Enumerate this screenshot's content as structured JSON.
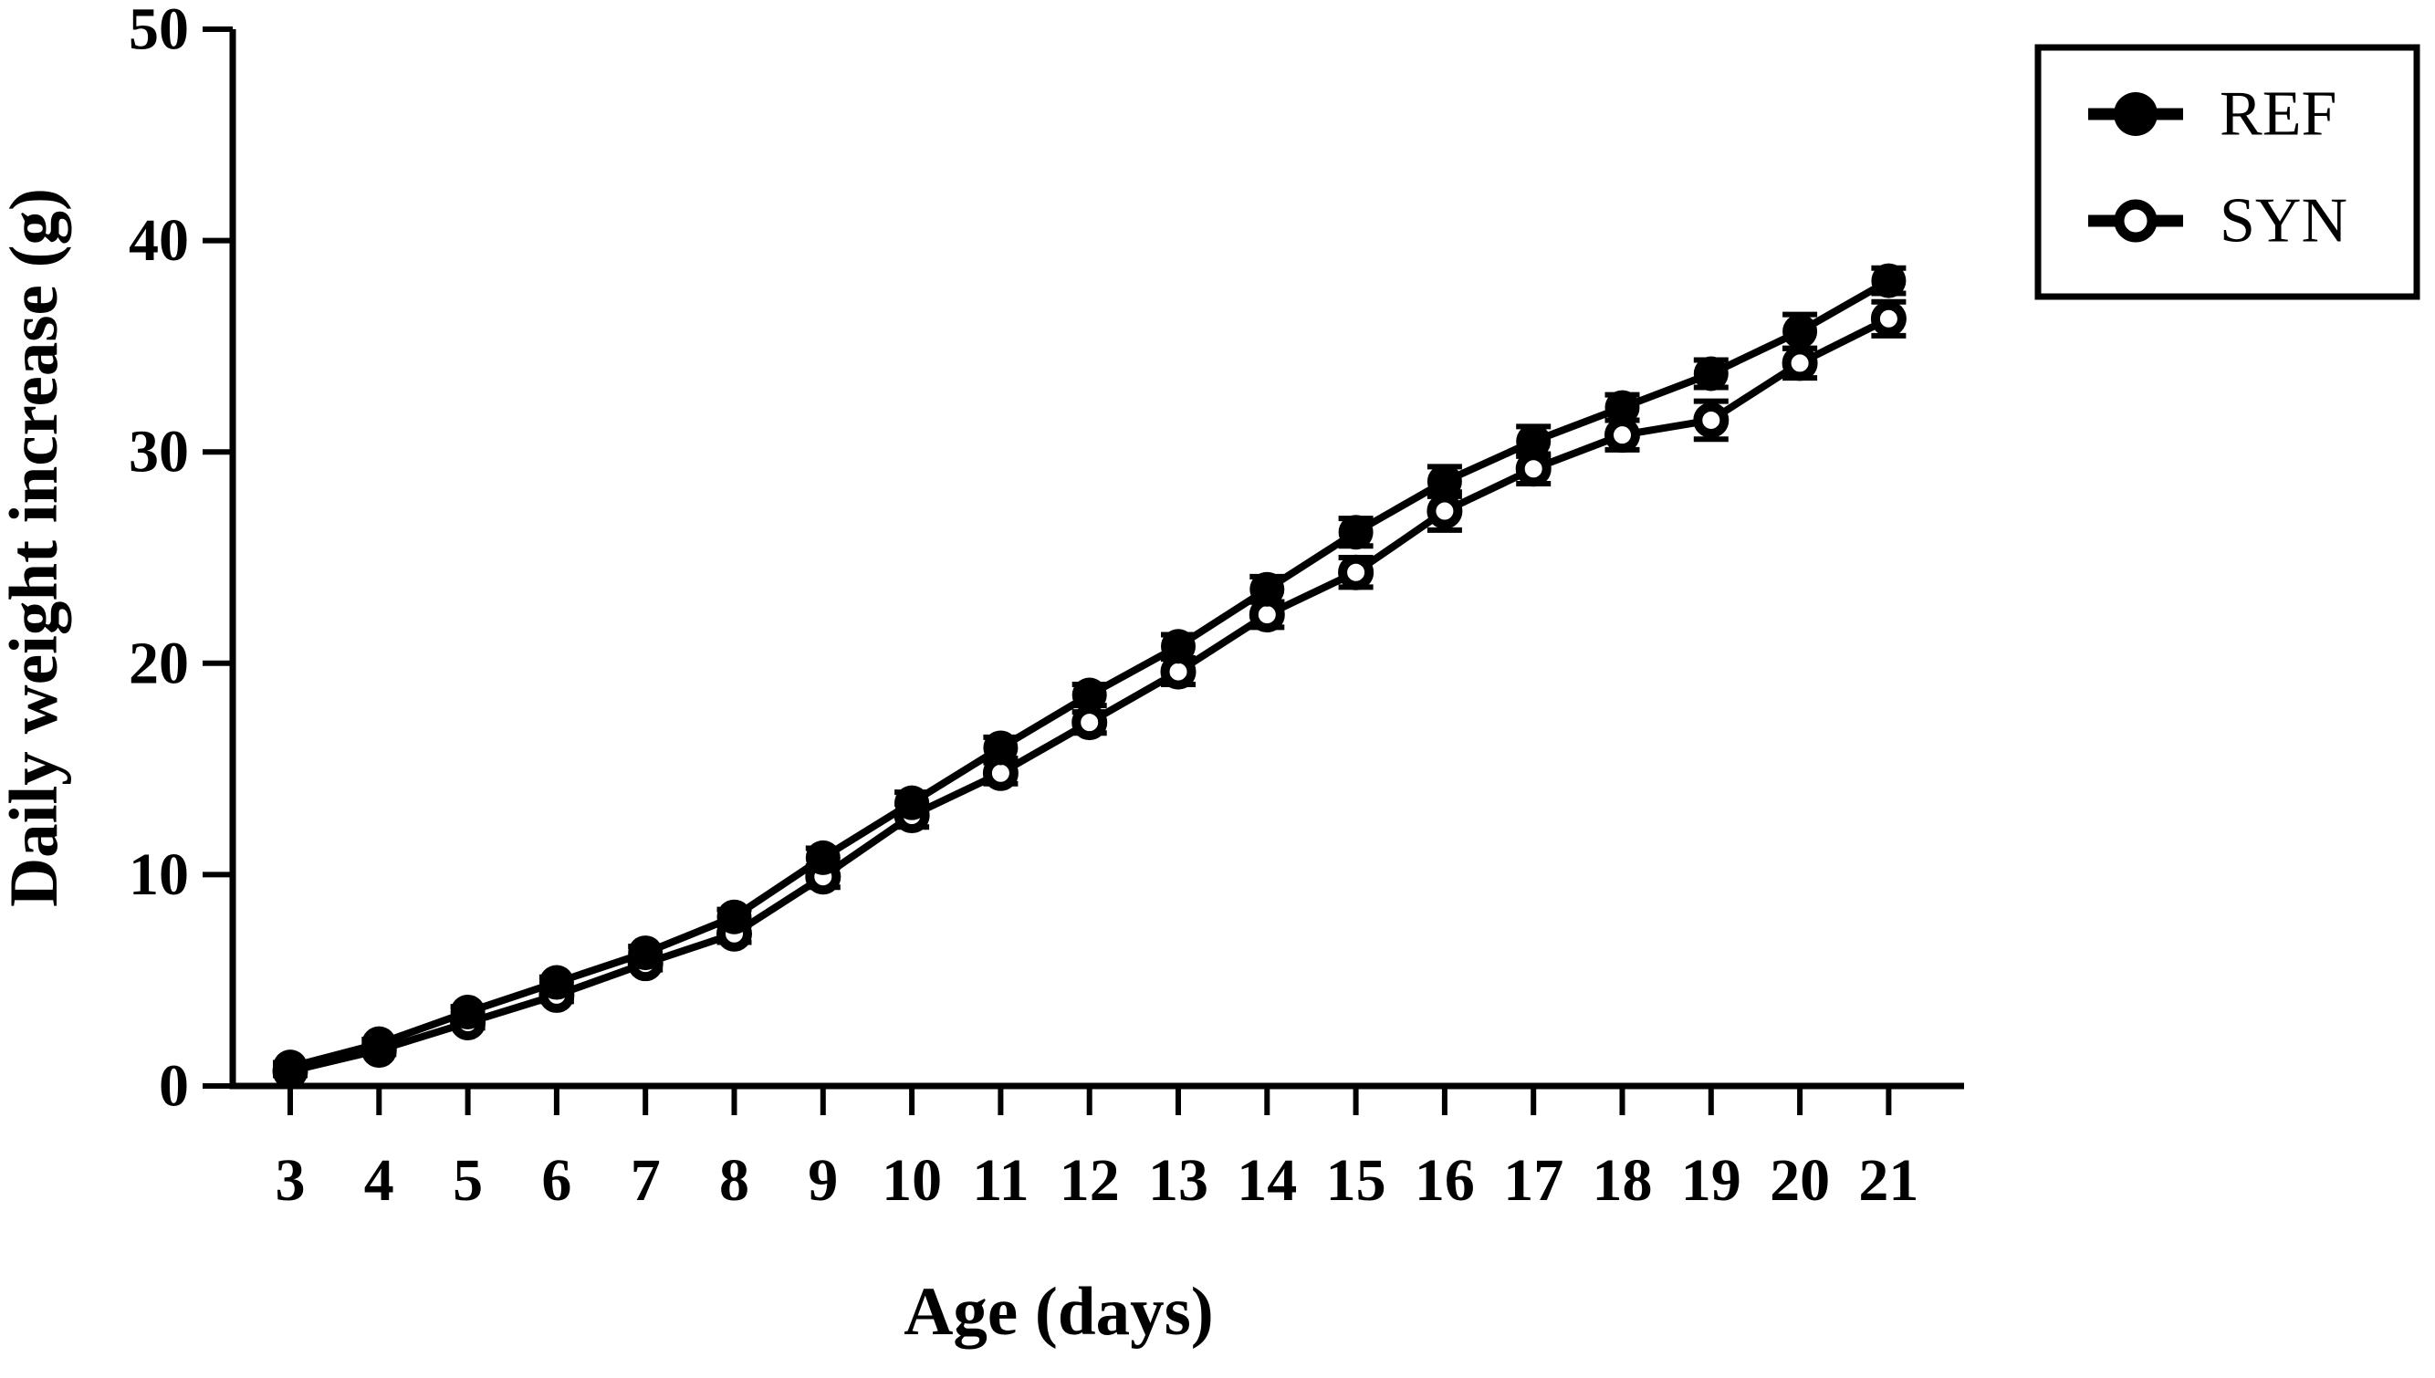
{
  "figure": {
    "background": "#ffffff",
    "ink_color": "#000000"
  },
  "chart_data": {
    "type": "line",
    "title": "",
    "xlabel": "Age (days)",
    "ylabel": "Daily weight increase (g)",
    "x": [
      3,
      4,
      5,
      6,
      7,
      8,
      9,
      10,
      11,
      12,
      13,
      14,
      15,
      16,
      17,
      18,
      19,
      20,
      21
    ],
    "y_ticks": [
      0,
      10,
      20,
      30,
      40,
      50
    ],
    "ylim": [
      0,
      50
    ],
    "grid": false,
    "error_bars": true,
    "legend_position": "top-right",
    "series": [
      {
        "name": "REF",
        "marker": "filled-circle",
        "color": "#000000",
        "values": [
          0.9,
          2.0,
          3.5,
          4.9,
          6.3,
          8.0,
          10.8,
          13.4,
          16.0,
          18.5,
          20.8,
          23.5,
          26.2,
          28.6,
          30.5,
          32.1,
          33.7,
          35.7,
          38.1
        ],
        "errors": [
          0.2,
          0.2,
          0.25,
          0.25,
          0.3,
          0.35,
          0.45,
          0.5,
          0.5,
          0.5,
          0.55,
          0.6,
          0.65,
          0.7,
          0.7,
          0.6,
          0.65,
          0.8,
          0.6
        ]
      },
      {
        "name": "SYN",
        "marker": "open-circle",
        "color": "#000000",
        "values": [
          0.7,
          1.7,
          3.0,
          4.3,
          5.8,
          7.2,
          9.9,
          12.8,
          14.8,
          17.2,
          19.6,
          22.3,
          24.3,
          27.2,
          29.2,
          30.8,
          31.5,
          34.2,
          36.3
        ],
        "errors": [
          0.2,
          0.2,
          0.25,
          0.3,
          0.3,
          0.4,
          0.5,
          0.55,
          0.5,
          0.5,
          0.6,
          0.6,
          0.7,
          0.9,
          0.7,
          0.7,
          0.9,
          0.7,
          0.8
        ]
      }
    ]
  }
}
